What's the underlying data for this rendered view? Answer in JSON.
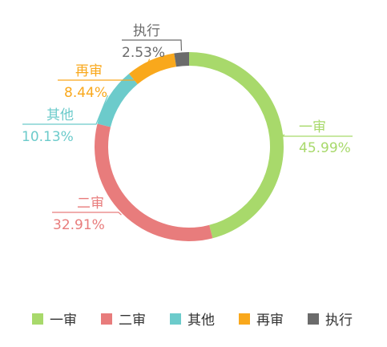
{
  "chart_data": {
    "type": "pie",
    "categories": [
      "一审",
      "二审",
      "其他",
      "再审",
      "执行"
    ],
    "values": [
      45.99,
      32.91,
      10.13,
      8.44,
      2.53
    ],
    "value_labels": [
      "45.99%",
      "32.91%",
      "10.13%",
      "8.44%",
      "2.53%"
    ],
    "colors": [
      "#a8d96b",
      "#e87c7c",
      "#6ccbcb",
      "#f9a81c",
      "#6b6b6b"
    ],
    "title": "",
    "donut": true,
    "legend_position": "bottom"
  }
}
